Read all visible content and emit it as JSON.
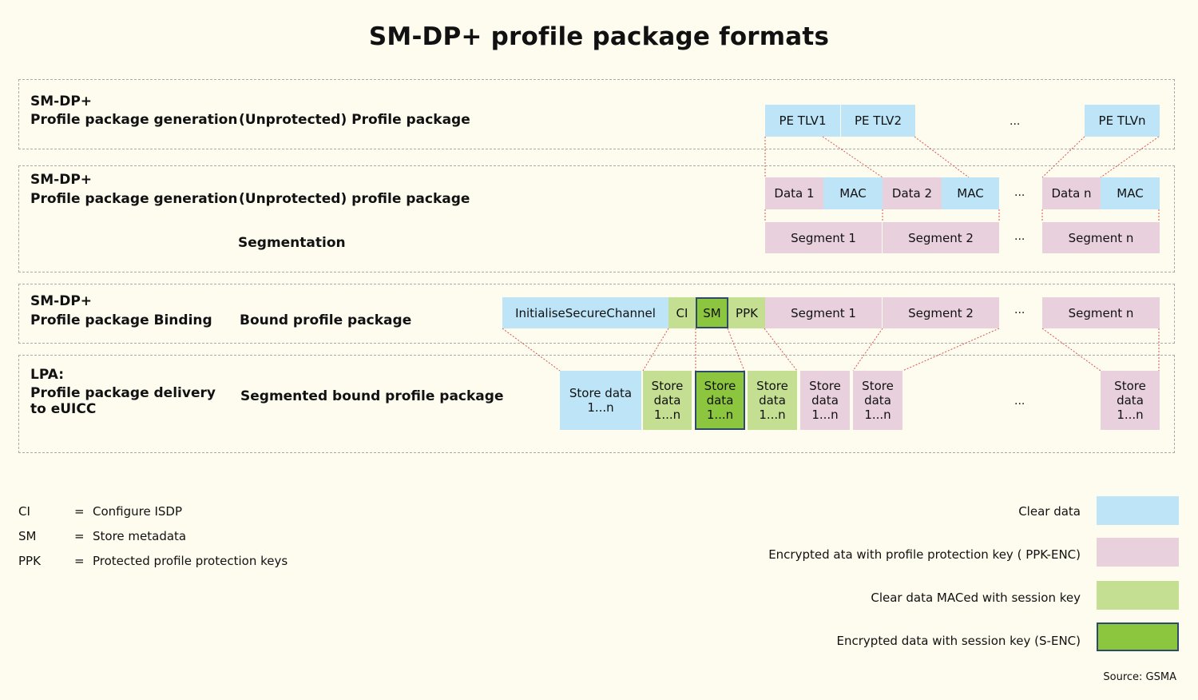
{
  "title": "SM-DP+ profile package formats",
  "rows": [
    {
      "label1": "SM-DP+",
      "label2": "Profile package generation",
      "desc": "(Unprotected) Profile package"
    },
    {
      "label1": "SM-DP+",
      "label2": "Profile package generation",
      "desc": "(Unprotected) profile package",
      "desc2": "Segmentation"
    },
    {
      "label1": "SM-DP+",
      "label2": "Profile package Binding",
      "desc": "Bound profile package"
    },
    {
      "label1": "LPA:",
      "label2": "Profile package delivery",
      "label3": "to eUICC",
      "desc": "Segmented bound profile package"
    }
  ],
  "boxes": {
    "pe1": "PE TLV1",
    "pe2": "PE TLV2",
    "pen": "PE TLVn",
    "data1": "Data 1",
    "mac1": "MAC",
    "data2": "Data 2",
    "mac2": "MAC",
    "datan": "Data n",
    "macn": "MAC",
    "seg1": "Segment 1",
    "seg2": "Segment 2",
    "segn": "Segment n",
    "isc": "InitialiseSecureChannel",
    "ci": "CI",
    "sm": "SM",
    "ppk": "PPK",
    "bseg1": "Segment 1",
    "bseg2": "Segment 2",
    "bsegn": "Segment n",
    "store_a1": "Store data",
    "store_a2": "1...n",
    "store_line1": "Store",
    "store_line2": "data",
    "store_line3": "1...n",
    "ellipsis": "..."
  },
  "abbreviations": [
    {
      "abbr": "CI",
      "eq": "=",
      "meaning": "Configure ISDP"
    },
    {
      "abbr": "SM",
      "eq": "=",
      "meaning": "Store metadata"
    },
    {
      "abbr": "PPK",
      "eq": "=",
      "meaning": "Protected profile protection keys"
    }
  ],
  "legend": [
    {
      "label": "Clear data",
      "color": "#bde4f7"
    },
    {
      "label": "Encrypted ata with profile protection key ( PPK-ENC)",
      "color": "#e8d1dd"
    },
    {
      "label": "Clear data MACed with session key",
      "color": "#c5df92"
    },
    {
      "label": "Encrypted data with session key (S-ENC)",
      "color": "#8cc63f"
    }
  ],
  "source": "Source: GSMA"
}
